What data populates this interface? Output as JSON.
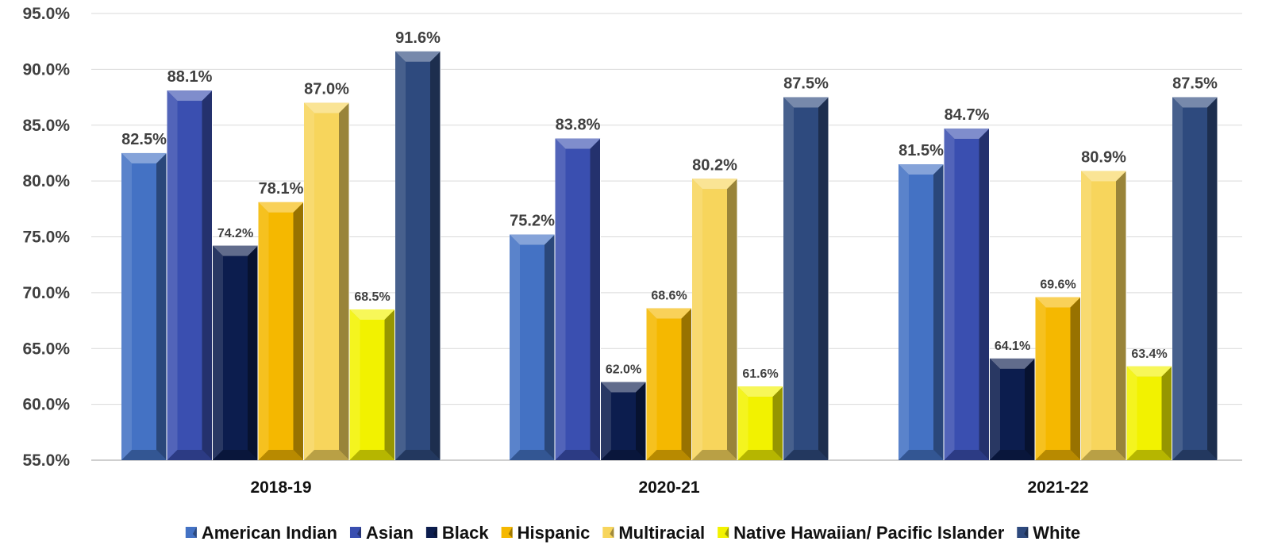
{
  "chart_data": {
    "type": "bar",
    "title": "",
    "xlabel": "",
    "ylabel": "",
    "categories": [
      "2018-19",
      "2020-21",
      "2021-22"
    ],
    "ylim": [
      55,
      95
    ],
    "yticks": [
      "55.0%",
      "60.0%",
      "65.0%",
      "70.0%",
      "75.0%",
      "80.0%",
      "85.0%",
      "90.0%",
      "95.0%"
    ],
    "grid": true,
    "legend_position": "bottom",
    "series": [
      {
        "name": "American Indian",
        "color": "#4472C4",
        "values": [
          82.5,
          75.2,
          81.5
        ],
        "labels": [
          "82.5%",
          "75.2%",
          "81.5%"
        ]
      },
      {
        "name": "Asian",
        "color": "#3A4FB0",
        "values": [
          88.1,
          83.8,
          84.7
        ],
        "labels": [
          "88.1%",
          "83.8%",
          "84.7%"
        ]
      },
      {
        "name": "Black",
        "color": "#0C1D4E",
        "values": [
          74.2,
          62.0,
          64.1
        ],
        "labels": [
          "74.2%",
          "62.0%",
          "64.1%"
        ]
      },
      {
        "name": "Hispanic",
        "color": "#F5B800",
        "values": [
          78.1,
          68.6,
          69.6
        ],
        "labels": [
          "78.1%",
          "68.6%",
          "69.6%"
        ]
      },
      {
        "name": "Multiracial",
        "color": "#F7D55C",
        "values": [
          87.0,
          80.2,
          80.9
        ],
        "labels": [
          "87.0%",
          "80.2%",
          "80.9%"
        ]
      },
      {
        "name": "Native Hawaiian/ Pacific Islander",
        "color": "#F2F200",
        "values": [
          68.5,
          61.6,
          63.4
        ],
        "labels": [
          "68.5%",
          "61.6%",
          "63.4%"
        ]
      },
      {
        "name": "White",
        "color": "#2E4A7E",
        "values": [
          91.6,
          87.5,
          87.5
        ],
        "labels": [
          "91.6%",
          "87.5%",
          "87.5%"
        ]
      }
    ]
  }
}
